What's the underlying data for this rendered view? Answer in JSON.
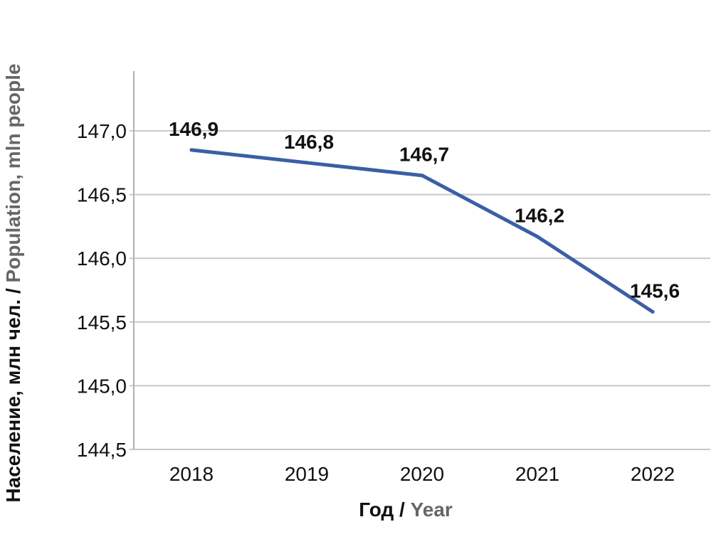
{
  "chart_data": {
    "type": "line",
    "title": "",
    "x": [
      "2018",
      "2019",
      "2020",
      "2021",
      "2022"
    ],
    "series": [
      {
        "values": [
          146.85,
          146.75,
          146.65,
          146.17,
          145.58
        ],
        "data_labels": [
          "146,9",
          "146,8",
          "146,7",
          "146,2",
          "145,6"
        ]
      }
    ],
    "ylim": [
      144.5,
      147.0
    ],
    "yticks": [
      "147,0",
      "146,5",
      "146,0",
      "145,5",
      "145,0",
      "144,5"
    ],
    "ytick_values": [
      147.0,
      146.5,
      146.0,
      145.5,
      145.0,
      144.5
    ],
    "xlabel": {
      "primary": "Год",
      "separator": " / ",
      "secondary": "Year"
    },
    "ylabel": {
      "primary": "Население, млн чел.",
      "separator": " / ",
      "secondary": "Population, mln people"
    },
    "grid": "horizontal",
    "colors": {
      "line": "#3a5fa6",
      "grid": "#c8c8c8",
      "axis": "#b0b0b0",
      "primary_text": "#111111",
      "secondary_text": "#666666"
    }
  }
}
